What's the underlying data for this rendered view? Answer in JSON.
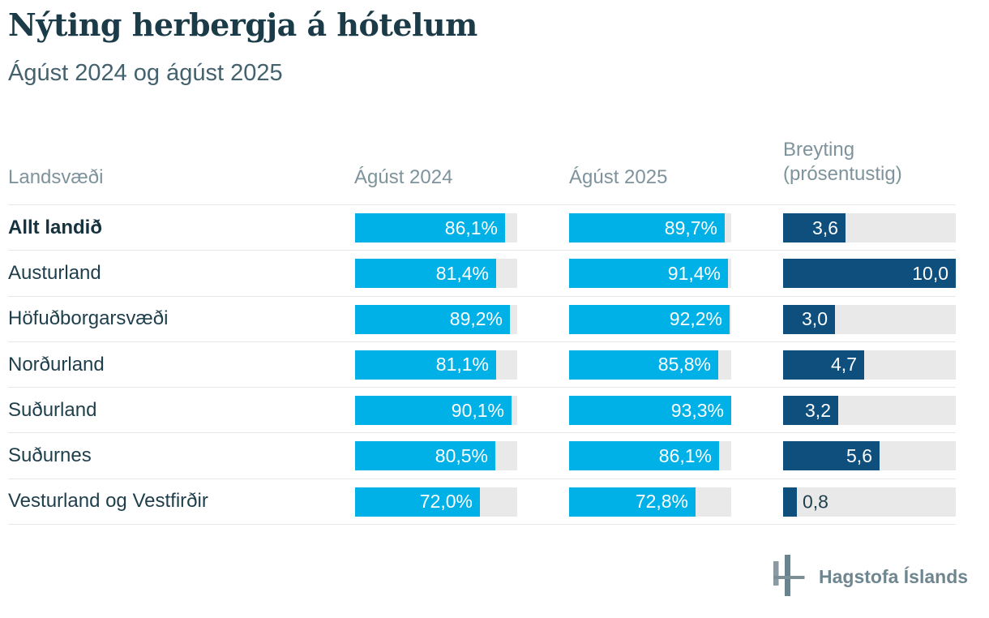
{
  "page": {
    "title": "Nýting herbergja á hótelum",
    "subtitle": "Ágúst 2024 og ágúst 2025"
  },
  "colors": {
    "bar_cyan": "#00b1e7",
    "bar_navy": "#0e4f7d",
    "track_gray": "#e9e9e9",
    "title_text": "#1c3b48",
    "subtitle_text": "#44626e",
    "header_text": "#7e939b",
    "row_text": "#1f3e4c",
    "logo_gray": "#6f8690"
  },
  "table": {
    "headers": {
      "region": "Landsvæði",
      "aug2024": "Ágúst 2024",
      "aug2025": "Ágúst 2025",
      "change_line1": "Breyting",
      "change_line2": "(prósentustig)"
    },
    "rows": [
      {
        "region": "Allt landið",
        "bold": true,
        "aug2024": 86.1,
        "aug2025": 89.7,
        "change": 3.6,
        "aug2024_label": "86,1%",
        "aug2025_label": "89,7%",
        "change_label": "3,6"
      },
      {
        "region": "Austurland",
        "bold": false,
        "aug2024": 81.4,
        "aug2025": 91.4,
        "change": 10.0,
        "aug2024_label": "81,4%",
        "aug2025_label": "91,4%",
        "change_label": "10,0"
      },
      {
        "region": "Höfuðborgarsvæði",
        "bold": false,
        "aug2024": 89.2,
        "aug2025": 92.2,
        "change": 3.0,
        "aug2024_label": "89,2%",
        "aug2025_label": "92,2%",
        "change_label": "3,0"
      },
      {
        "region": "Norðurland",
        "bold": false,
        "aug2024": 81.1,
        "aug2025": 85.8,
        "change": 4.7,
        "aug2024_label": "81,1%",
        "aug2025_label": "85,8%",
        "change_label": "4,7"
      },
      {
        "region": "Suðurland",
        "bold": false,
        "aug2024": 90.1,
        "aug2025": 93.3,
        "change": 3.2,
        "aug2024_label": "90,1%",
        "aug2025_label": "93,3%",
        "change_label": "3,2"
      },
      {
        "region": "Suðurnes",
        "bold": false,
        "aug2024": 80.5,
        "aug2025": 86.1,
        "change": 5.6,
        "aug2024_label": "80,5%",
        "aug2025_label": "86,1%",
        "change_label": "5,6"
      },
      {
        "region": "Vesturland og Vestfirðir",
        "bold": false,
        "aug2024": 72.0,
        "aug2025": 72.8,
        "change": 0.8,
        "aug2024_label": "72,0%",
        "aug2025_label": "72,8%",
        "change_label": "0,8"
      }
    ]
  },
  "chart_data": {
    "type": "bar",
    "orientation": "horizontal",
    "title": "Nýting herbergja á hótelum",
    "subtitle": "Ágúst 2024 og ágúst 2025",
    "categories": [
      "Allt landið",
      "Austurland",
      "Höfuðborgarsvæði",
      "Norðurland",
      "Suðurland",
      "Suðurnes",
      "Vesturland og Vestfirðir"
    ],
    "series": [
      {
        "name": "Ágúst 2024",
        "unit": "%",
        "values": [
          86.1,
          81.4,
          89.2,
          81.1,
          90.1,
          80.5,
          72.0
        ]
      },
      {
        "name": "Ágúst 2025",
        "unit": "%",
        "values": [
          89.7,
          91.4,
          92.2,
          85.8,
          93.3,
          86.1,
          72.8
        ]
      },
      {
        "name": "Breyting (prósentustig)",
        "unit": "prósentustig",
        "values": [
          3.6,
          10.0,
          3.0,
          4.7,
          3.2,
          5.6,
          0.8
        ]
      }
    ],
    "percent_axis_max": 93.3,
    "change_axis_max": 10.0,
    "value_labels": "inside-end",
    "grid": false,
    "legend": false
  },
  "footer": {
    "logo_text": "Hagstofa Íslands"
  }
}
